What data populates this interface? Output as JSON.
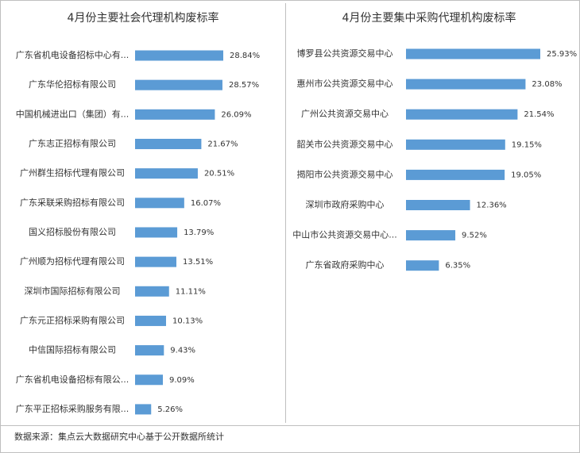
{
  "chart_data": [
    {
      "type": "bar",
      "orientation": "horizontal",
      "title": "4月份主要社会代理机构废标率",
      "color": "#5b9bd5",
      "categories": [
        "广东省机电设备招标中心有...",
        "广东华伦招标有限公司",
        "中国机械进出口（集团）有...",
        "广东志正招标有限公司",
        "广州群生招标代理有限公司",
        "广东采联采购招标有限公司",
        "国义招标股份有限公司",
        "广州顺为招标代理有限公司",
        "深圳市国际招标有限公司",
        "广东元正招标采购有限公司",
        "中信国际招标有限公司",
        "广东省机电设备招标有限公...",
        "广东平正招标采购服务有限..."
      ],
      "values": [
        28.84,
        28.57,
        26.09,
        21.67,
        20.51,
        16.07,
        13.79,
        13.51,
        11.11,
        10.13,
        9.43,
        9.09,
        5.26
      ],
      "value_labels": [
        "28.84%",
        "28.57%",
        "26.09%",
        "21.67%",
        "20.51%",
        "16.07%",
        "13.79%",
        "13.51%",
        "11.11%",
        "10.13%",
        "9.43%",
        "9.09%",
        "5.26%"
      ]
    },
    {
      "type": "bar",
      "orientation": "horizontal",
      "title": "4月份主要集中采购代理机构废标率",
      "color": "#5b9bd5",
      "categories": [
        "博罗县公共资源交易中心",
        "惠州市公共资源交易中心",
        "广州公共资源交易中心",
        "韶关市公共资源交易中心",
        "揭阳市公共资源交易中心",
        "深圳市政府采购中心",
        "中山市公共资源交易中心...",
        "广东省政府采购中心"
      ],
      "values": [
        25.93,
        23.08,
        21.54,
        19.15,
        19.05,
        12.36,
        9.52,
        6.35
      ],
      "value_labels": [
        "25.93%",
        "23.08%",
        "21.54%",
        "19.15%",
        "19.05%",
        "12.36%",
        "9.52%",
        "6.35%"
      ]
    }
  ],
  "source": "数据来源：集点云大数据研究中心基于公开数据所统计"
}
